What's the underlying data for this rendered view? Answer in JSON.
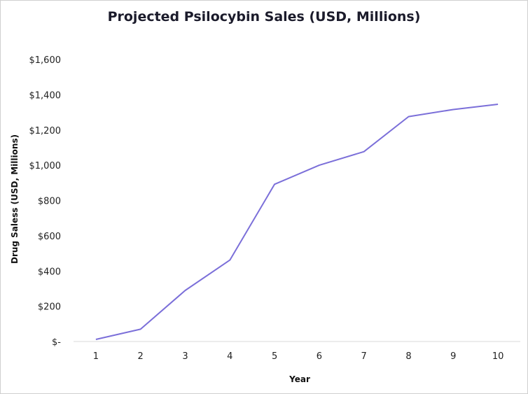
{
  "chart_data": {
    "type": "line",
    "title": "Projected Psilocybin Sales (USD, Millions)",
    "xlabel": "Year",
    "ylabel": "Drug Saless (USD, Millions)",
    "x": [
      1,
      2,
      3,
      4,
      5,
      6,
      7,
      8,
      9,
      10
    ],
    "series": [
      {
        "values": [
          12,
          70,
          290,
          462,
          892,
          1000,
          1077,
          1276,
          1316,
          1346
        ]
      }
    ],
    "ylim": [
      0,
      1600
    ],
    "y_ticks": [
      0,
      200,
      400,
      600,
      800,
      1000,
      1200,
      1400,
      1600
    ],
    "y_tick_labels": [
      "$-",
      "$200",
      "$400",
      "$600",
      "$800",
      "$1,000",
      "$1,200",
      "$1,400",
      "$1,600"
    ],
    "x_tick_labels": [
      "1",
      "2",
      "3",
      "4",
      "5",
      "6",
      "7",
      "8",
      "9",
      "10"
    ],
    "grid": false,
    "line_color": "#7b6fd9",
    "axis_color": "#d9d9d9"
  }
}
